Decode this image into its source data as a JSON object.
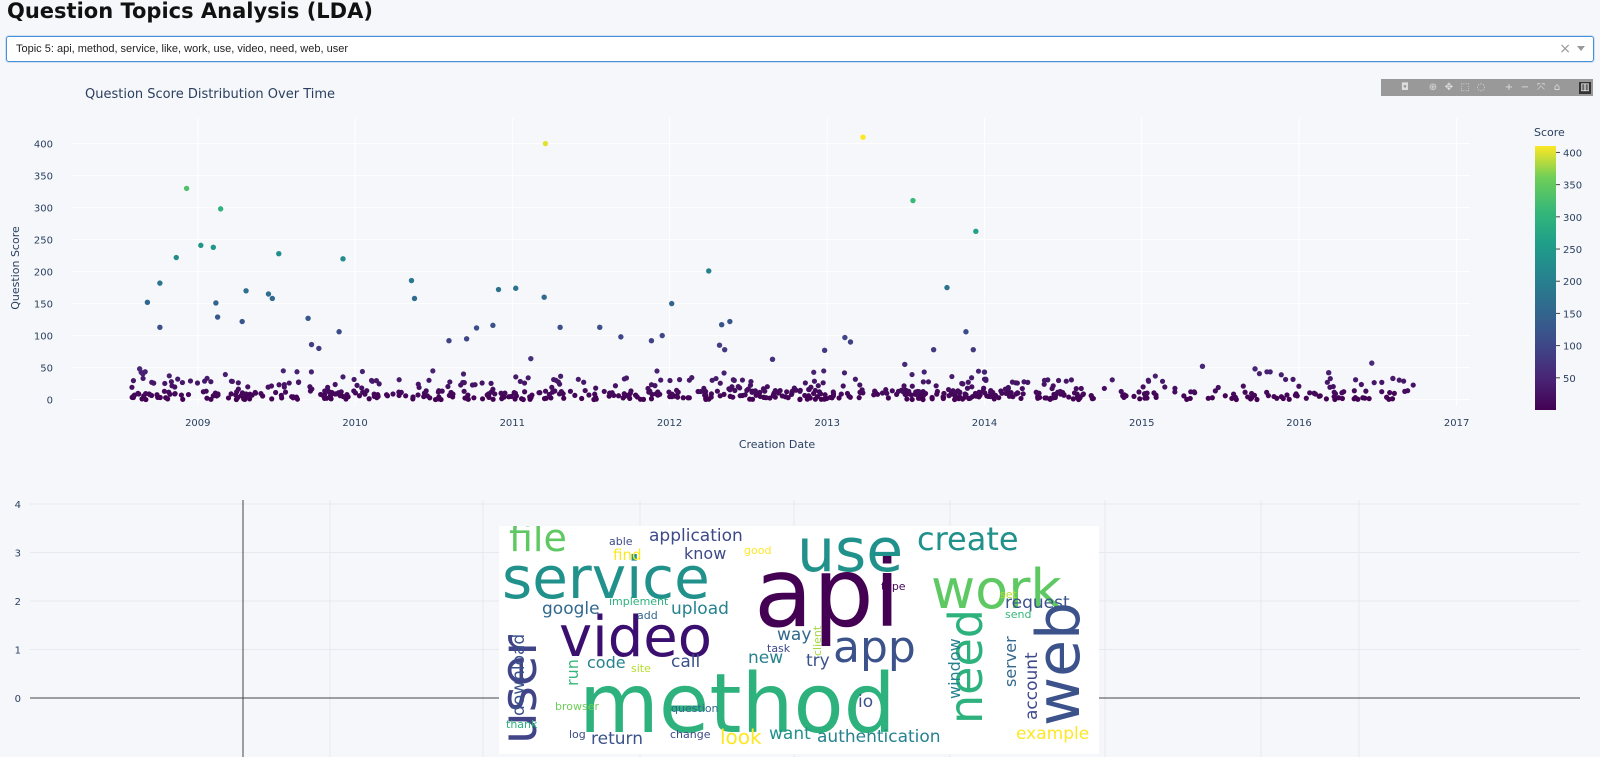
{
  "page": {
    "title": "Question Topics Analysis (LDA)"
  },
  "dropdown": {
    "selected": "Topic 5: api, method, service, like, work, use, video, need, web, user",
    "clear_glyph": "×"
  },
  "modebar": {
    "icons": [
      "camera-icon",
      "zoom-icon",
      "pan-icon",
      "box-select-icon",
      "lasso-icon",
      "zoom-in-icon",
      "zoom-out-icon",
      "autoscale-icon",
      "reset-axes-icon",
      "plotly-logo-icon"
    ]
  },
  "chart_data": [
    {
      "type": "scatter",
      "title": "Question Score Distribution Over Time",
      "xlabel": "Creation Date",
      "ylabel": "Question Score",
      "x_ticks": [
        "2009",
        "2010",
        "2011",
        "2012",
        "2013",
        "2014",
        "2015",
        "2016",
        "2017"
      ],
      "y_ticks": [
        "0",
        "50",
        "100",
        "150",
        "200",
        "250",
        "300",
        "350",
        "400"
      ],
      "xlim": [
        "2008-03-15",
        "2017-02-01"
      ],
      "ylim": [
        -10,
        440
      ],
      "colorbar": {
        "title": "Score",
        "ticks": [
          "50",
          "100",
          "150",
          "200",
          "250",
          "300",
          "350",
          "400"
        ],
        "range": [
          0,
          410
        ],
        "colorscale": "viridis"
      },
      "grid": true,
      "series": [
        {
          "x": [
            "2008-12-06",
            "2009-02-23",
            "2009-07-08",
            "2009-12-04",
            "2011-03-19",
            "2012-04-01",
            "2013-03-25",
            "2013-07-19",
            "2013-12-12",
            "2009-01-08",
            "2009-02-06",
            "2008-11-12",
            "2008-09-06",
            "2008-10-05",
            "2009-02-12",
            "2009-04-23",
            "2009-06-23",
            "2009-09-14",
            "2010-05-12",
            "2010-05-19",
            "2010-11-30",
            "2011-01-09",
            "2011-03-16",
            "2012-01-06",
            "2013-10-06",
            "2008-08-19",
            "2009-02-16",
            "2009-04-14",
            "2009-06-14",
            "2008-10-05",
            "2009-09-22",
            "2010-10-10",
            "2010-11-17",
            "2011-04-22",
            "2011-07-23",
            "2011-12-15",
            "2012-05-01",
            "2012-05-20",
            "2013-02-11",
            "2013-02-24",
            "2013-11-19",
            "2012-04-26",
            "2011-11-20",
            "2010-08-07",
            "2009-11-25",
            "2011-09-10",
            "2009-10-09",
            "2010-09-17",
            "2014-01-01",
            "2016-06-18",
            "2016-08-06",
            "2012-05-08",
            "2012-08-27",
            "2012-12-26",
            "2013-12-06",
            "2013-09-05",
            "2013-06-30",
            "2015-05-22",
            "2015-09-21",
            "2016-03-10",
            "2011-02-13"
          ],
          "y": [
            330,
            298,
            228,
            220,
            400,
            201,
            410,
            311,
            263,
            241,
            238,
            222,
            152,
            182,
            151,
            170,
            158,
            127,
            186,
            158,
            172,
            174,
            160,
            150,
            175,
            48,
            129,
            122,
            165,
            113,
            86,
            112,
            116,
            113,
            113,
            100,
            117,
            122,
            97,
            90,
            106,
            85,
            92,
            92,
            106,
            98,
            80,
            95,
            43,
            57,
            33,
            78,
            63,
            77,
            78,
            78,
            55,
            52,
            48,
            42,
            64
          ]
        }
      ],
      "series_note": "plus ~700 low-score questions (0–45) spread Aug 2008 – Sep 2016"
    }
  ],
  "lower_chart": {
    "y_ticks": [
      "0",
      "1",
      "2",
      "3",
      "4"
    ]
  },
  "wordcloud": {
    "words": [
      {
        "text": "api",
        "color": "#440154"
      },
      {
        "text": "method",
        "color": "#2db27d"
      },
      {
        "text": "service",
        "color": "#21918c"
      },
      {
        "text": "use",
        "color": "#21918c"
      },
      {
        "text": "work",
        "color": "#5ec962"
      },
      {
        "text": "video",
        "color": "#3b0f70"
      },
      {
        "text": "user",
        "color": "#414487"
      },
      {
        "text": "app",
        "color": "#3b528b"
      },
      {
        "text": "need",
        "color": "#2db27d"
      },
      {
        "text": "web",
        "color": "#3b528b"
      },
      {
        "text": "file",
        "color": "#5ec962"
      },
      {
        "text": "create",
        "color": "#21918c"
      },
      {
        "text": "application",
        "color": "#3e4989"
      },
      {
        "text": "know",
        "color": "#3e4989"
      },
      {
        "text": "find",
        "color": "#fde725"
      },
      {
        "text": "able",
        "color": "#3e4989"
      },
      {
        "text": "good",
        "color": "#fde725"
      },
      {
        "text": "google",
        "color": "#31688e"
      },
      {
        "text": "upload",
        "color": "#26828e"
      },
      {
        "text": "request",
        "color": "#3b528b"
      },
      {
        "text": "implement",
        "color": "#2db27d"
      },
      {
        "text": "add",
        "color": "#31688e"
      },
      {
        "text": "type",
        "color": "#440154"
      },
      {
        "text": "set",
        "color": "#b5de2b"
      },
      {
        "text": "send",
        "color": "#35b779"
      },
      {
        "text": "way",
        "color": "#31688e"
      },
      {
        "text": "task",
        "color": "#3e4989"
      },
      {
        "text": "client",
        "color": "#a0da39"
      },
      {
        "text": "try",
        "color": "#3b528b"
      },
      {
        "text": "window",
        "color": "#26828e"
      },
      {
        "text": "server",
        "color": "#31688e"
      },
      {
        "text": "account",
        "color": "#3e4989"
      },
      {
        "text": "download",
        "color": "#3b528b"
      },
      {
        "text": "run",
        "color": "#35b779"
      },
      {
        "text": "site",
        "color": "#b5de2b"
      },
      {
        "text": "code",
        "color": "#26828e"
      },
      {
        "text": "call",
        "color": "#3b528b"
      },
      {
        "text": "new",
        "color": "#26828e"
      },
      {
        "text": "io",
        "color": "#3b528b"
      },
      {
        "text": "browser",
        "color": "#6ece58"
      },
      {
        "text": "question",
        "color": "#31688e"
      },
      {
        "text": "thank",
        "color": "#2db27d"
      },
      {
        "text": "log",
        "color": "#3e4989"
      },
      {
        "text": "return",
        "color": "#3b528b"
      },
      {
        "text": "change",
        "color": "#3e4989"
      },
      {
        "text": "look",
        "color": "#fde725"
      },
      {
        "text": "want",
        "color": "#21918c"
      },
      {
        "text": "authentication",
        "color": "#26828e"
      },
      {
        "text": "example",
        "color": "#fde725"
      }
    ]
  }
}
